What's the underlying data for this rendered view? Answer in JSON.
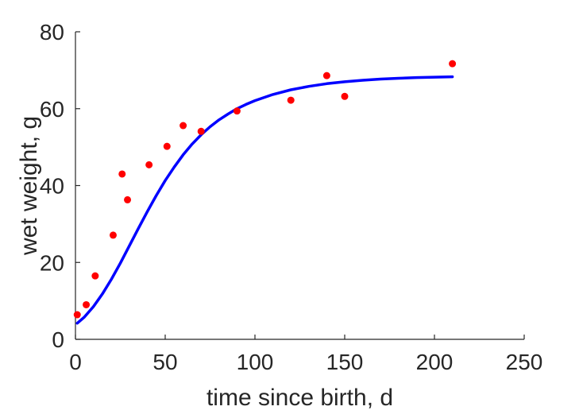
{
  "chart_data": {
    "type": "scatter",
    "title": "",
    "xlabel": "time since birth, d",
    "ylabel": "wet weight, g",
    "xlim": [
      0,
      250
    ],
    "ylim": [
      0,
      80
    ],
    "xticks": [
      0,
      50,
      100,
      150,
      200,
      250
    ],
    "yticks": [
      0,
      20,
      40,
      60,
      80
    ],
    "grid": false,
    "legend": "none",
    "box": "left-bottom axes only",
    "series": [
      {
        "kind": "scatter",
        "color": "#ff0000",
        "marker": "filled-circle",
        "points": [
          {
            "x": 1,
            "y": 6.4
          },
          {
            "x": 6,
            "y": 9.0
          },
          {
            "x": 11,
            "y": 16.5
          },
          {
            "x": 21,
            "y": 27.1
          },
          {
            "x": 26,
            "y": 43.0
          },
          {
            "x": 29,
            "y": 36.3
          },
          {
            "x": 41,
            "y": 45.4
          },
          {
            "x": 51,
            "y": 50.2
          },
          {
            "x": 60,
            "y": 55.6
          },
          {
            "x": 70,
            "y": 54.1
          },
          {
            "x": 90,
            "y": 59.4
          },
          {
            "x": 120,
            "y": 62.2
          },
          {
            "x": 140,
            "y": 68.6
          },
          {
            "x": 150,
            "y": 63.2
          },
          {
            "x": 210,
            "y": 71.7
          }
        ]
      },
      {
        "kind": "line",
        "color": "#0000ff",
        "points": [
          {
            "x": 1,
            "y": 4.2
          },
          {
            "x": 5,
            "y": 5.8
          },
          {
            "x": 10,
            "y": 8.5
          },
          {
            "x": 15,
            "y": 11.8
          },
          {
            "x": 20,
            "y": 15.6
          },
          {
            "x": 25,
            "y": 19.8
          },
          {
            "x": 30,
            "y": 24.3
          },
          {
            "x": 35,
            "y": 28.8
          },
          {
            "x": 40,
            "y": 33.2
          },
          {
            "x": 45,
            "y": 37.4
          },
          {
            "x": 50,
            "y": 41.3
          },
          {
            "x": 55,
            "y": 44.8
          },
          {
            "x": 60,
            "y": 48.0
          },
          {
            "x": 65,
            "y": 50.8
          },
          {
            "x": 70,
            "y": 53.2
          },
          {
            "x": 75,
            "y": 55.3
          },
          {
            "x": 80,
            "y": 57.1
          },
          {
            "x": 85,
            "y": 58.6
          },
          {
            "x": 90,
            "y": 60.0
          },
          {
            "x": 95,
            "y": 61.1
          },
          {
            "x": 100,
            "y": 62.1
          },
          {
            "x": 110,
            "y": 63.7
          },
          {
            "x": 120,
            "y": 64.9
          },
          {
            "x": 130,
            "y": 65.8
          },
          {
            "x": 140,
            "y": 66.5
          },
          {
            "x": 150,
            "y": 67.0
          },
          {
            "x": 160,
            "y": 67.4
          },
          {
            "x": 170,
            "y": 67.7
          },
          {
            "x": 180,
            "y": 67.9
          },
          {
            "x": 190,
            "y": 68.1
          },
          {
            "x": 200,
            "y": 68.2
          },
          {
            "x": 210,
            "y": 68.3
          }
        ]
      }
    ]
  }
}
